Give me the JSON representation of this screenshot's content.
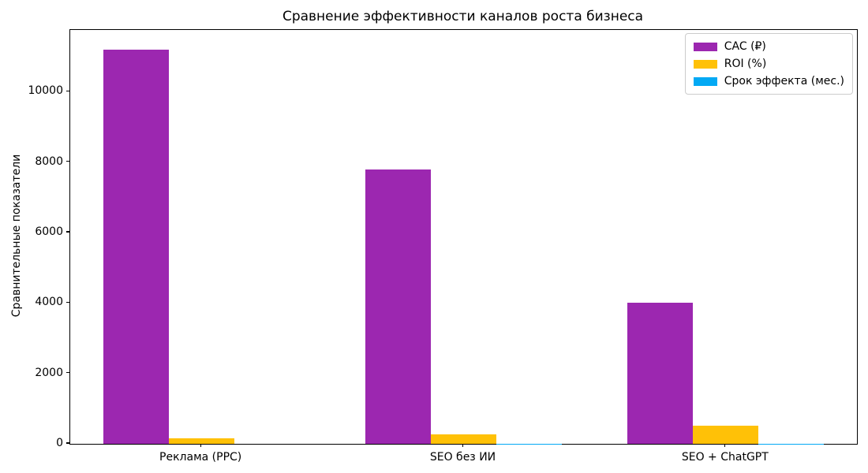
{
  "chart_data": {
    "type": "bar",
    "title": "Сравнение эффективности каналов роста бизнеса",
    "ylabel": "Сравнительные показатели",
    "xlabel": "",
    "categories": [
      "Реклама (PPC)",
      "SEO без ИИ",
      "SEO + ChatGPT"
    ],
    "series": [
      {
        "name": "CAC (₽)",
        "color": "#9C27B0",
        "values": [
          11200,
          7800,
          4000
        ]
      },
      {
        "name": "ROI (%)",
        "color": "#FFC107",
        "values": [
          150,
          280,
          520
        ]
      },
      {
        "name": "Срок эффекта (мес.)",
        "color": "#03A9F4",
        "values": [
          1,
          6,
          3
        ]
      }
    ],
    "ylim": [
      0,
      11750
    ],
    "yticks": [
      0,
      2000,
      4000,
      6000,
      8000,
      10000
    ],
    "grid": false,
    "legend_position": "upper right",
    "bar_width_fraction": 0.25
  }
}
